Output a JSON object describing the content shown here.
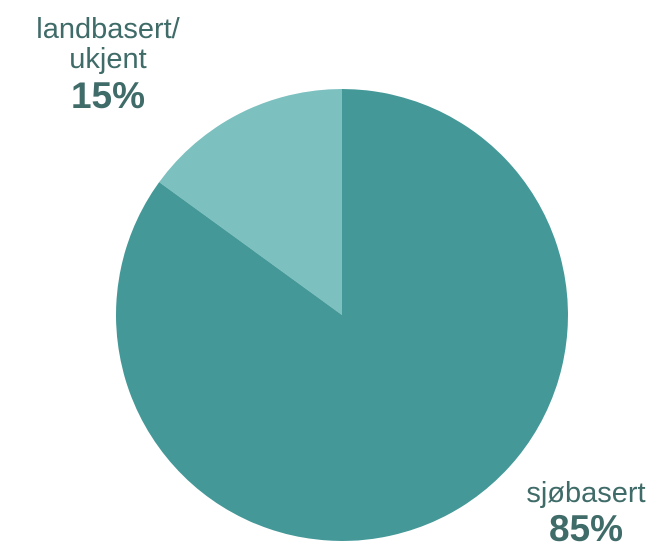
{
  "chart_data": {
    "type": "pie",
    "title": "",
    "slices": [
      {
        "label": "sjøbasert",
        "value": 85,
        "display": "85%",
        "color": "#449898"
      },
      {
        "label": "landbasert/\nukjent",
        "value": 15,
        "display": "15%",
        "color": "#7cc0bf"
      }
    ],
    "legend": "none",
    "start_angle_deg": 0,
    "direction": "clockwise"
  }
}
